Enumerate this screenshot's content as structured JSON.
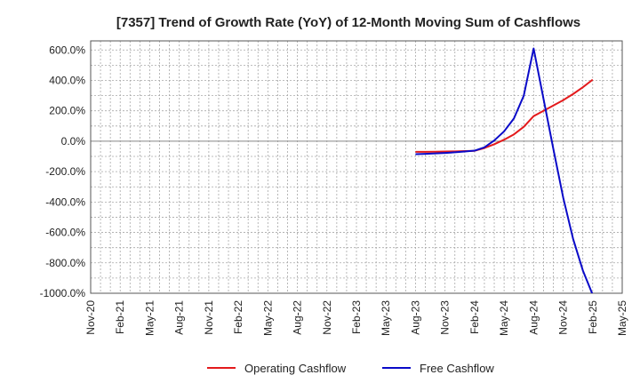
{
  "chart_data": {
    "type": "line",
    "title": "[7357]  Trend of Growth Rate (YoY) of 12-Month Moving Sum of Cashflows",
    "xlabel": "",
    "ylabel": "",
    "x_ticks": [
      "Nov-20",
      "Feb-21",
      "May-21",
      "Aug-21",
      "Nov-21",
      "Feb-22",
      "May-22",
      "Aug-22",
      "Nov-22",
      "Feb-23",
      "May-23",
      "Aug-23",
      "Nov-23",
      "Feb-24",
      "May-24",
      "Aug-24",
      "Nov-24",
      "Feb-25",
      "May-25"
    ],
    "y_ticks": [
      "600.0%",
      "400.0%",
      "200.0%",
      "0.0%",
      "-200.0%",
      "-400.0%",
      "-600.0%",
      "-800.0%",
      "-1000.0%"
    ],
    "y_tick_values": [
      600,
      400,
      200,
      0,
      -200,
      -400,
      -600,
      -800,
      -1000
    ],
    "ylim": [
      -1000,
      660
    ],
    "x_range": [
      "Nov-20",
      "May-25"
    ],
    "grid": true,
    "legend_position": "bottom-center",
    "x": [
      "Aug-23",
      "Sep-23",
      "Oct-23",
      "Nov-23",
      "Dec-23",
      "Jan-24",
      "Feb-24",
      "Mar-24",
      "Apr-24",
      "May-24",
      "Jun-24",
      "Jul-24",
      "Aug-24",
      "Sep-24",
      "Oct-24",
      "Nov-24",
      "Dec-24",
      "Jan-25",
      "Feb-25"
    ],
    "series": [
      {
        "name": "Operating Cashflow",
        "color": "#e31a1c",
        "values": [
          -70,
          -70,
          -69,
          -68,
          -67,
          -65,
          -63,
          -45,
          -20,
          10,
          45,
          95,
          165,
          200,
          235,
          270,
          310,
          355,
          405
        ]
      },
      {
        "name": "Free Cashflow",
        "color": "#0a0ac8",
        "values": [
          -85,
          -83,
          -80,
          -77,
          -73,
          -68,
          -62,
          -40,
          5,
          65,
          150,
          300,
          610,
          280,
          -50,
          -370,
          -640,
          -850,
          -1010
        ]
      }
    ]
  }
}
